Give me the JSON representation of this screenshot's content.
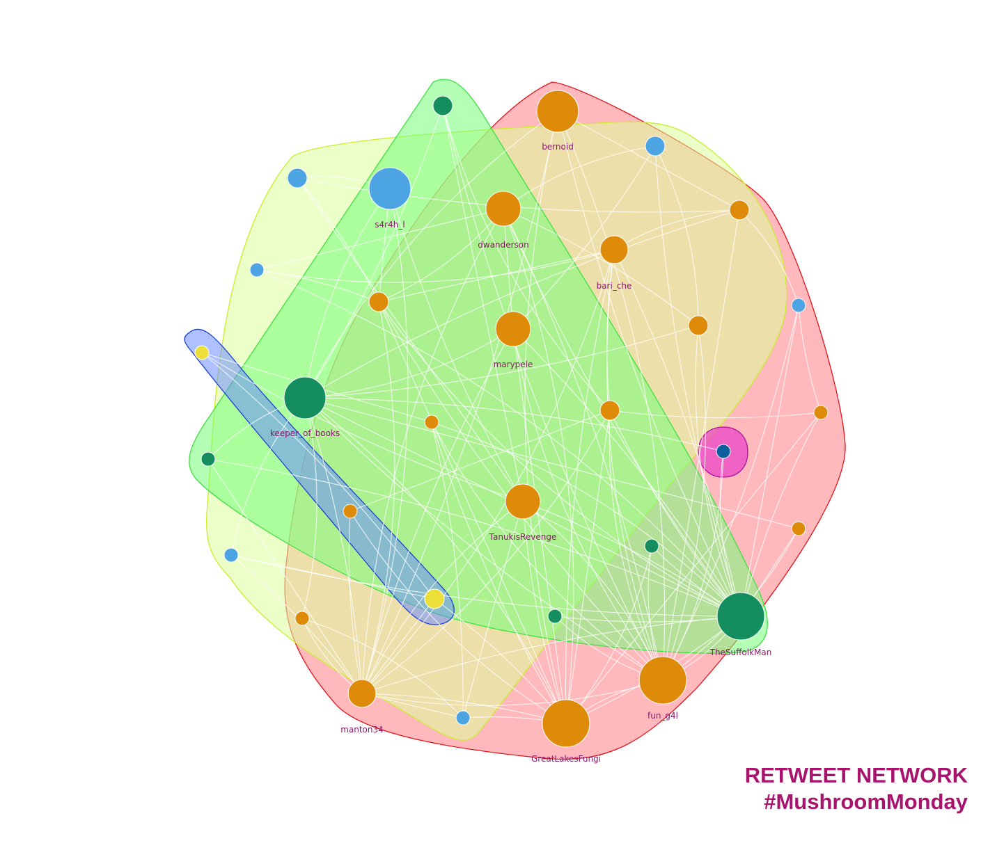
{
  "title": {
    "line1": "RETWEET NETWORK",
    "line2": "#MushroomMonday",
    "color": "#a8136e"
  },
  "colors": {
    "orange": "#de8b0a",
    "blue": "#4ca4e2",
    "green": "#148e5e",
    "yellow": "#ecdf3a",
    "darkblue": "#0e5fa0",
    "label": "#8a1a6b",
    "edge": "#ffffff"
  },
  "nodes": [
    {
      "id": "bernoid",
      "label": "bernoid",
      "color": "orange",
      "size": "xl"
    },
    {
      "id": "s4r4h_l",
      "label": "s4r4h_l",
      "color": "blue",
      "size": "xl"
    },
    {
      "id": "dwanderson",
      "label": "dwanderson",
      "color": "orange",
      "size": "l"
    },
    {
      "id": "bari_che",
      "label": "bari_che",
      "color": "orange",
      "size": "m"
    },
    {
      "id": "marypele",
      "label": "marypele",
      "color": "orange",
      "size": "l"
    },
    {
      "id": "keeper_of_books",
      "label": "keeper_of_books",
      "color": "green",
      "size": "xl"
    },
    {
      "id": "TanukisRevenge",
      "label": "TanukisRevenge",
      "color": "orange",
      "size": "l"
    },
    {
      "id": "TheSuffolkMan",
      "label": "TheSuffolkMan",
      "color": "green",
      "size": "xxl"
    },
    {
      "id": "fun_g4l",
      "label": "fun_g4l",
      "color": "orange",
      "size": "xxl"
    },
    {
      "id": "GreatLakesFungi",
      "label": "GreatLakesFungi",
      "color": "orange",
      "size": "xxl"
    },
    {
      "id": "manton34",
      "label": "manton34",
      "color": "orange",
      "size": "m"
    },
    {
      "id": "g1",
      "label": "",
      "color": "green",
      "size": "s"
    },
    {
      "id": "b1",
      "label": "",
      "color": "blue",
      "size": "s"
    },
    {
      "id": "b2",
      "label": "",
      "color": "blue",
      "size": "s"
    },
    {
      "id": "b3",
      "label": "",
      "color": "blue",
      "size": "xs"
    },
    {
      "id": "o1",
      "label": "",
      "color": "orange",
      "size": "s"
    },
    {
      "id": "o2",
      "label": "",
      "color": "orange",
      "size": "s"
    },
    {
      "id": "b4",
      "label": "",
      "color": "blue",
      "size": "xs"
    },
    {
      "id": "o3",
      "label": "",
      "color": "orange",
      "size": "s"
    },
    {
      "id": "y1",
      "label": "",
      "color": "yellow",
      "size": "xs"
    },
    {
      "id": "o4",
      "label": "",
      "color": "orange",
      "size": "xs"
    },
    {
      "id": "o5",
      "label": "",
      "color": "orange",
      "size": "s"
    },
    {
      "id": "o6",
      "label": "",
      "color": "orange",
      "size": "xs"
    },
    {
      "id": "db1",
      "label": "",
      "color": "darkblue",
      "size": "xs"
    },
    {
      "id": "g2",
      "label": "",
      "color": "green",
      "size": "xs"
    },
    {
      "id": "o7",
      "label": "",
      "color": "orange",
      "size": "xs"
    },
    {
      "id": "b5",
      "label": "",
      "color": "blue",
      "size": "xs"
    },
    {
      "id": "g3",
      "label": "",
      "color": "green",
      "size": "xs"
    },
    {
      "id": "o8",
      "label": "",
      "color": "orange",
      "size": "xs"
    },
    {
      "id": "y2",
      "label": "",
      "color": "yellow",
      "size": "s"
    },
    {
      "id": "g4",
      "label": "",
      "color": "green",
      "size": "xs"
    },
    {
      "id": "o9",
      "label": "",
      "color": "orange",
      "size": "xs"
    },
    {
      "id": "b6",
      "label": "",
      "color": "blue",
      "size": "xs"
    }
  ],
  "edges": [
    [
      "b1",
      "s4r4h_l"
    ],
    [
      "b1",
      "o1"
    ],
    [
      "b1",
      "TanukisRevenge"
    ],
    [
      "b1",
      "o2"
    ],
    [
      "b2",
      "dwanderson"
    ],
    [
      "b2",
      "o3"
    ],
    [
      "b2",
      "marypele"
    ],
    [
      "s4r4h_l",
      "o1"
    ],
    [
      "s4r4h_l",
      "TanukisRevenge"
    ],
    [
      "s4r4h_l",
      "keeper_of_books"
    ],
    [
      "s4r4h_l",
      "manton34"
    ],
    [
      "g1",
      "keeper_of_books"
    ],
    [
      "g1",
      "TanukisRevenge"
    ],
    [
      "g1",
      "fun_g4l"
    ],
    [
      "bernoid",
      "GreatLakesFungi"
    ],
    [
      "bernoid",
      "fun_g4l"
    ],
    [
      "bernoid",
      "manton34"
    ],
    [
      "bernoid",
      "o2"
    ],
    [
      "bernoid",
      "TheSuffolkMan"
    ],
    [
      "bernoid",
      "keeper_of_books"
    ],
    [
      "dwanderson",
      "GreatLakesFungi"
    ],
    [
      "dwanderson",
      "fun_g4l"
    ],
    [
      "dwanderson",
      "marypele"
    ],
    [
      "dwanderson",
      "TheSuffolkMan"
    ],
    [
      "dwanderson",
      "manton34"
    ],
    [
      "dwanderson",
      "o1"
    ],
    [
      "dwanderson",
      "o3"
    ],
    [
      "dwanderson",
      "b3"
    ],
    [
      "bari_che",
      "GreatLakesFungi"
    ],
    [
      "bari_che",
      "fun_g4l"
    ],
    [
      "bari_che",
      "manton34"
    ],
    [
      "bari_che",
      "TheSuffolkMan"
    ],
    [
      "bari_che",
      "o1"
    ],
    [
      "bari_che",
      "o5"
    ],
    [
      "b3",
      "bari_che"
    ],
    [
      "b3",
      "TheSuffolkMan"
    ],
    [
      "b3",
      "o1"
    ],
    [
      "o2",
      "fun_g4l"
    ],
    [
      "o2",
      "keeper_of_books"
    ],
    [
      "o2",
      "bari_che"
    ],
    [
      "o2",
      "b4"
    ],
    [
      "b4",
      "fun_g4l"
    ],
    [
      "b4",
      "TheSuffolkMan"
    ],
    [
      "b4",
      "o6"
    ],
    [
      "o3",
      "TheSuffolkMan"
    ],
    [
      "o3",
      "fun_g4l"
    ],
    [
      "o3",
      "keeper_of_books"
    ],
    [
      "marypele",
      "GreatLakesFungi"
    ],
    [
      "marypele",
      "manton34"
    ],
    [
      "marypele",
      "fun_g4l"
    ],
    [
      "marypele",
      "keeper_of_books"
    ],
    [
      "marypele",
      "TheSuffolkMan"
    ],
    [
      "o1",
      "GreatLakesFungi"
    ],
    [
      "o1",
      "fun_g4l"
    ],
    [
      "o1",
      "TheSuffolkMan"
    ],
    [
      "o1",
      "manton34"
    ],
    [
      "y1",
      "y2"
    ],
    [
      "y1",
      "o4"
    ],
    [
      "y1",
      "TanukisRevenge"
    ],
    [
      "keeper_of_books",
      "g2"
    ],
    [
      "keeper_of_books",
      "GreatLakesFungi"
    ],
    [
      "keeper_of_books",
      "manton34"
    ],
    [
      "keeper_of_books",
      "TheSuffolkMan"
    ],
    [
      "keeper_of_books",
      "fun_g4l"
    ],
    [
      "keeper_of_books",
      "b5"
    ],
    [
      "keeper_of_books",
      "o8"
    ],
    [
      "keeper_of_books",
      "db1"
    ],
    [
      "keeper_of_books",
      "o7"
    ],
    [
      "o4",
      "GreatLakesFungi"
    ],
    [
      "o4",
      "fun_g4l"
    ],
    [
      "o4",
      "TheSuffolkMan"
    ],
    [
      "o4",
      "b6"
    ],
    [
      "o5",
      "GreatLakesFungi"
    ],
    [
      "o5",
      "TheSuffolkMan"
    ],
    [
      "o5",
      "fun_g4l"
    ],
    [
      "o5",
      "manton34"
    ],
    [
      "o6",
      "o5"
    ],
    [
      "o6",
      "GreatLakesFungi"
    ],
    [
      "o6",
      "TheSuffolkMan"
    ],
    [
      "db1",
      "TheSuffolkMan"
    ],
    [
      "db1",
      "fun_g4l"
    ],
    [
      "g2",
      "TheSuffolkMan"
    ],
    [
      "g2",
      "manton34"
    ],
    [
      "TanukisRevenge",
      "GreatLakesFungi"
    ],
    [
      "TanukisRevenge",
      "manton34"
    ],
    [
      "TanukisRevenge",
      "fun_g4l"
    ],
    [
      "TanukisRevenge",
      "TheSuffolkMan"
    ],
    [
      "TanukisRevenge",
      "b6"
    ],
    [
      "g3",
      "TheSuffolkMan"
    ],
    [
      "g3",
      "fun_g4l"
    ],
    [
      "g3",
      "GreatLakesFungi"
    ],
    [
      "b5",
      "manton34"
    ],
    [
      "b5",
      "y2"
    ],
    [
      "b5",
      "TheSuffolkMan"
    ],
    [
      "o8",
      "manton34"
    ],
    [
      "o8",
      "b6"
    ],
    [
      "y2",
      "GreatLakesFungi"
    ],
    [
      "y2",
      "manton34"
    ],
    [
      "g4",
      "TheSuffolkMan"
    ],
    [
      "g4",
      "fun_g4l"
    ],
    [
      "TheSuffolkMan",
      "fun_g4l"
    ],
    [
      "TheSuffolkMan",
      "GreatLakesFungi"
    ],
    [
      "TheSuffolkMan",
      "o7"
    ],
    [
      "TheSuffolkMan",
      "manton34"
    ],
    [
      "fun_g4l",
      "GreatLakesFungi"
    ],
    [
      "fun_g4l",
      "manton34"
    ],
    [
      "manton34",
      "GreatLakesFungi"
    ],
    [
      "manton34",
      "b6"
    ],
    [
      "o9",
      "manton34"
    ],
    [
      "o9",
      "GreatLakesFungi"
    ],
    [
      "o7",
      "fun_g4l"
    ],
    [
      "b6",
      "GreatLakesFungi"
    ],
    [
      "o5",
      "o9"
    ],
    [
      "b2",
      "TheSuffolkMan"
    ],
    [
      "g1",
      "o5"
    ]
  ],
  "groups": [
    {
      "id": "red",
      "fill": "#ff7f86",
      "stroke": "#e2141c"
    },
    {
      "id": "yellow",
      "fill": "#dfff9a",
      "stroke": "#c9ee2a"
    },
    {
      "id": "green",
      "fill": "#76ff7a",
      "stroke": "#3ee040"
    },
    {
      "id": "blue",
      "fill": "#6b8dff",
      "stroke": "#1b3fd6"
    },
    {
      "id": "magenta",
      "fill": "#ea3fc8",
      "stroke": "#b0109c"
    }
  ]
}
